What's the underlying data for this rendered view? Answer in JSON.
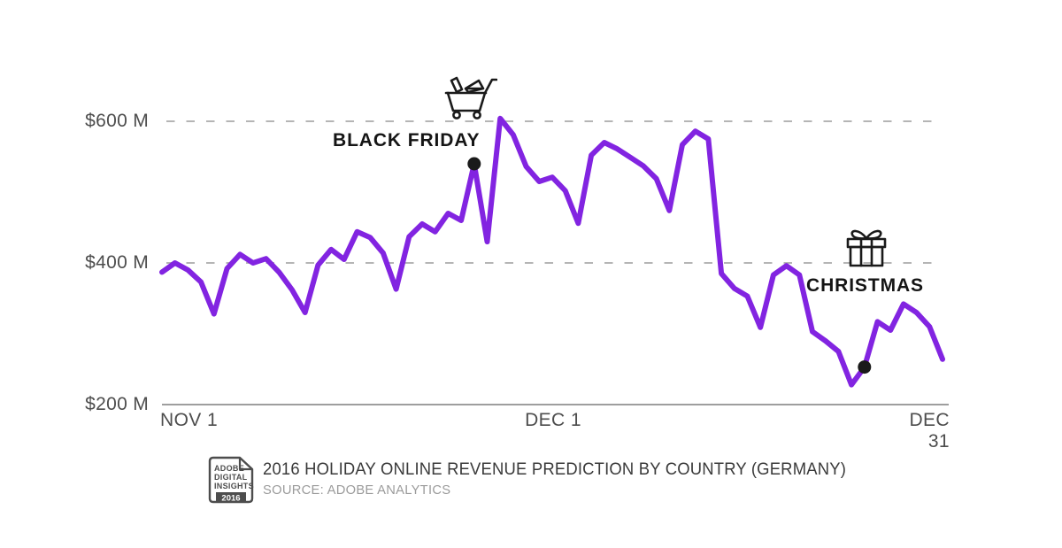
{
  "chart_data": {
    "type": "line",
    "title": "2016 HOLIDAY ONLINE REVENUE PREDICTION BY COUNTRY (GERMANY)",
    "source": "SOURCE: ADOBE ANALYTICS",
    "unit": "USD millions",
    "x_ticks": [
      "NOV 1",
      "DEC 1",
      "DEC 31"
    ],
    "y_ticks": [
      {
        "label": "$600 M",
        "value": 600,
        "style": "dashed"
      },
      {
        "label": "$400 M",
        "value": 400,
        "style": "dashed"
      },
      {
        "label": "$200 M",
        "value": 200,
        "style": "solid"
      }
    ],
    "ylim": [
      200,
      620
    ],
    "grid": "horizontal-dashed",
    "legend": "none",
    "series": [
      {
        "name": "Germany daily online revenue prediction ($M), Nov 1 - Dec 31 2016",
        "color": "#8224e1",
        "values": [
          387,
          400,
          390,
          373,
          328,
          392,
          412,
          400,
          406,
          387,
          362,
          330,
          397,
          419,
          405,
          444,
          436,
          414,
          363,
          437,
          455,
          444,
          470,
          460,
          540,
          430,
          604,
          581,
          536,
          515,
          521,
          502,
          456,
          552,
          570,
          561,
          549,
          537,
          519,
          474,
          567,
          586,
          575,
          385,
          364,
          353,
          309,
          383,
          396,
          383,
          303,
          290,
          275,
          228,
          253,
          317,
          305,
          342,
          330,
          310,
          264
        ]
      }
    ],
    "annotations": [
      {
        "name": "black-friday",
        "label": "BLACK FRIDAY",
        "icon": "shopping-cart-icon",
        "index": 24,
        "value": 540
      },
      {
        "name": "christmas",
        "label": "CHRISTMAS",
        "icon": "gift-icon",
        "index": 54,
        "value": 253
      }
    ]
  },
  "badge": {
    "line1": "ADOBE",
    "line2": "DIGITAL",
    "line3": "INSIGHTS",
    "year": "2016"
  },
  "footer": {
    "title": "2016 HOLIDAY ONLINE REVENUE PREDICTION BY COUNTRY (GERMANY)",
    "source": "SOURCE: ADOBE ANALYTICS"
  },
  "colors": {
    "line": "#8224e1",
    "marker": "#1a1a1a",
    "grid_dashed": "#b5b5b5",
    "axis": "#9e9e9e",
    "tick_label": "#4d4d4d",
    "annotation_text": "#151515",
    "title_text": "#3a3a3a",
    "source_text": "#9b9b9b"
  }
}
